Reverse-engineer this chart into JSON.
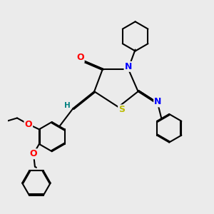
{
  "bg_color": "#ebebeb",
  "atom_colors": {
    "O": "#ff0000",
    "N": "#0000ff",
    "S": "#bbbb00",
    "C": "#000000",
    "H": "#008080"
  },
  "bond_color": "#000000",
  "bond_width": 1.5,
  "font_size_atoms": 9,
  "font_size_H": 7.5
}
